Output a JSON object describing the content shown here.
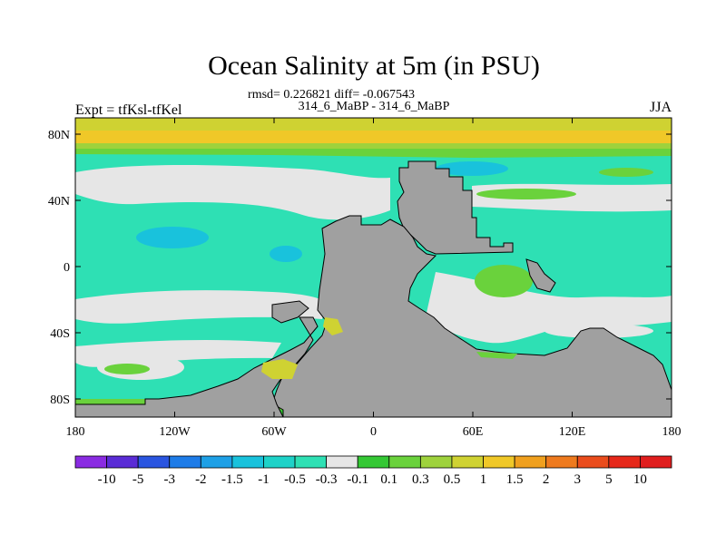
{
  "chart_data": {
    "type": "heatmap",
    "title": "Ocean Salinity at 5m (in PSU)",
    "stats_text": "rmsd= 0.226821 diff= -0.067543",
    "subtitle_center": "314_6_MaBP - 314_6_MaBP",
    "subtitle_left": "Expt = tfKsl-tfKel",
    "subtitle_right": "JJA",
    "x_ticks": [
      "180",
      "120W",
      "60W",
      "0",
      "60E",
      "120E",
      "180"
    ],
    "y_ticks": [
      "80N",
      "40N",
      "0",
      "40S",
      "80S"
    ],
    "xlim": [
      -180,
      180
    ],
    "ylim": [
      -90,
      90
    ],
    "grid": false,
    "legend_position": "bottom",
    "colorbar": {
      "labels": [
        "-10",
        "-5",
        "-3",
        "-2",
        "-1.5",
        "-1",
        "-0.5",
        "-0.3",
        "-0.1",
        "0.1",
        "0.3",
        "0.5",
        "1",
        "1.5",
        "2",
        "3",
        "5",
        "10"
      ],
      "colors": [
        "#8a2be2",
        "#5a2cd6",
        "#2a55e0",
        "#1e7ce8",
        "#1ea0e6",
        "#19c2dc",
        "#1ed2c8",
        "#2ee0b4",
        "#e6e6e6",
        "#34c834",
        "#6ad23c",
        "#9ed23c",
        "#cfd232",
        "#f0c828",
        "#f0a01e",
        "#ee7a1e",
        "#ea4c1c",
        "#e6281a",
        "#e01e1e"
      ]
    },
    "palette": {
      "land": "#a0a0a0",
      "near_zero": "#e6e6e6",
      "fresher": "#2ee0b4",
      "fresher_more": "#19c2dc",
      "saltier": "#6ad23c",
      "saltier_more": "#cfd232",
      "arctic_high": "#f0c828"
    }
  }
}
